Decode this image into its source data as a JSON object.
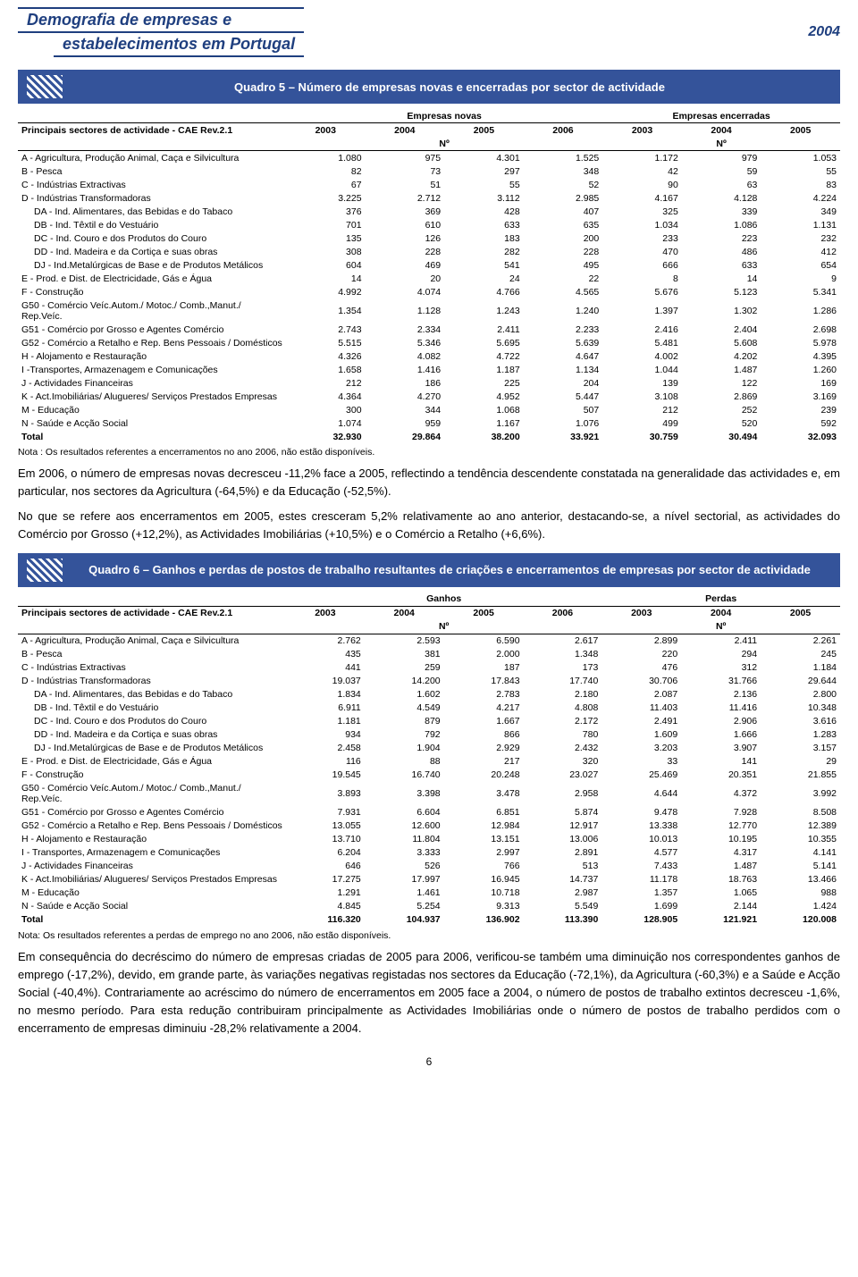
{
  "header": {
    "title_line1": "Demografia de empresas e",
    "title_line2": "estabelecimentos em Portugal",
    "year": "2004"
  },
  "quadro5": {
    "title": "Quadro 5 – Número de empresas novas e encerradas por sector de actividade",
    "col_label": "Principais sectores de actividade - CAE Rev.2.1",
    "group1": "Empresas novas",
    "group2": "Empresas encerradas",
    "years1": [
      "2003",
      "2004",
      "2005",
      "2006"
    ],
    "years2": [
      "2003",
      "2004",
      "2005"
    ],
    "unit": "Nº",
    "rows": [
      {
        "l": "A - Agricultura, Produção Animal, Caça e Silvicultura",
        "v": [
          "1.080",
          "975",
          "4.301",
          "1.525",
          "1.172",
          "979",
          "1.053"
        ]
      },
      {
        "l": "B - Pesca",
        "v": [
          "82",
          "73",
          "297",
          "348",
          "42",
          "59",
          "55"
        ]
      },
      {
        "l": "C - Indústrias Extractivas",
        "v": [
          "67",
          "51",
          "55",
          "52",
          "90",
          "63",
          "83"
        ]
      },
      {
        "l": "D - Indústrias Transformadoras",
        "v": [
          "3.225",
          "2.712",
          "3.112",
          "2.985",
          "4.167",
          "4.128",
          "4.224"
        ]
      },
      {
        "l": "DA - Ind. Alimentares, das Bebidas e do Tabaco",
        "v": [
          "376",
          "369",
          "428",
          "407",
          "325",
          "339",
          "349"
        ],
        "i": true
      },
      {
        "l": "DB - Ind. Têxtil e do Vestuário",
        "v": [
          "701",
          "610",
          "633",
          "635",
          "1.034",
          "1.086",
          "1.131"
        ],
        "i": true
      },
      {
        "l": "DC - Ind. Couro e dos Produtos do Couro",
        "v": [
          "135",
          "126",
          "183",
          "200",
          "233",
          "223",
          "232"
        ],
        "i": true
      },
      {
        "l": "DD - Ind. Madeira e da Cortiça e suas obras",
        "v": [
          "308",
          "228",
          "282",
          "228",
          "470",
          "486",
          "412"
        ],
        "i": true
      },
      {
        "l": "DJ - Ind.Metalúrgicas de Base e de Produtos Metálicos",
        "v": [
          "604",
          "469",
          "541",
          "495",
          "666",
          "633",
          "654"
        ],
        "i": true
      },
      {
        "l": "E - Prod. e Dist. de Electricidade, Gás e Água",
        "v": [
          "14",
          "20",
          "24",
          "22",
          "8",
          "14",
          "9"
        ]
      },
      {
        "l": "F - Construção",
        "v": [
          "4.992",
          "4.074",
          "4.766",
          "4.565",
          "5.676",
          "5.123",
          "5.341"
        ]
      },
      {
        "l": "G50 - Comércio Veíc.Autom./ Motoc./ Comb.,Manut./ Rep.Veíc.",
        "v": [
          "1.354",
          "1.128",
          "1.243",
          "1.240",
          "1.397",
          "1.302",
          "1.286"
        ]
      },
      {
        "l": "G51 - Comércio por Grosso e Agentes Comércio",
        "v": [
          "2.743",
          "2.334",
          "2.411",
          "2.233",
          "2.416",
          "2.404",
          "2.698"
        ]
      },
      {
        "l": "G52 - Comércio a Retalho e Rep. Bens Pessoais / Domésticos",
        "v": [
          "5.515",
          "5.346",
          "5.695",
          "5.639",
          "5.481",
          "5.608",
          "5.978"
        ]
      },
      {
        "l": "H - Alojamento e Restauração",
        "v": [
          "4.326",
          "4.082",
          "4.722",
          "4.647",
          "4.002",
          "4.202",
          "4.395"
        ]
      },
      {
        "l": "I -Transportes, Armazenagem e Comunicações",
        "v": [
          "1.658",
          "1.416",
          "1.187",
          "1.134",
          "1.044",
          "1.487",
          "1.260"
        ]
      },
      {
        "l": "J - Actividades Financeiras",
        "v": [
          "212",
          "186",
          "225",
          "204",
          "139",
          "122",
          "169"
        ]
      },
      {
        "l": "K - Act.Imobiliárias/ Alugueres/ Serviços Prestados Empresas",
        "v": [
          "4.364",
          "4.270",
          "4.952",
          "5.447",
          "3.108",
          "2.869",
          "3.169"
        ]
      },
      {
        "l": "M - Educação",
        "v": [
          "300",
          "344",
          "1.068",
          "507",
          "212",
          "252",
          "239"
        ]
      },
      {
        "l": "N - Saúde e Acção Social",
        "v": [
          "1.074",
          "959",
          "1.167",
          "1.076",
          "499",
          "520",
          "592"
        ]
      }
    ],
    "total": {
      "l": "Total",
      "v": [
        "32.930",
        "29.864",
        "38.200",
        "33.921",
        "30.759",
        "30.494",
        "32.093"
      ]
    },
    "note": "Nota : Os resultados referentes a encerramentos no ano 2006, não estão disponíveis."
  },
  "para1": "Em 2006, o número de empresas novas decresceu -11,2% face a 2005, reflectindo a tendência descendente constatada na generalidade das actividades e, em particular, nos sectores da Agricultura (-64,5%) e da Educação (-52,5%).",
  "para2": "No que se refere aos encerramentos em 2005, estes cresceram 5,2% relativamente ao ano anterior, destacando-se, a nível sectorial, as actividades do Comércio por Grosso (+12,2%), as Actividades Imobiliárias (+10,5%) e o Comércio a Retalho (+6,6%).",
  "quadro6": {
    "title": "Quadro 6 – Ganhos e perdas de postos de trabalho resultantes de criações e encerramentos de empresas por sector de actividade",
    "col_label": "Principais sectores de actividade - CAE Rev.2.1",
    "group1": "Ganhos",
    "group2": "Perdas",
    "years1": [
      "2003",
      "2004",
      "2005",
      "2006"
    ],
    "years2": [
      "2003",
      "2004",
      "2005"
    ],
    "unit": "Nº",
    "rows": [
      {
        "l": "A - Agricultura, Produção Animal, Caça e Silvicultura",
        "v": [
          "2.762",
          "2.593",
          "6.590",
          "2.617",
          "2.899",
          "2.411",
          "2.261"
        ]
      },
      {
        "l": "B - Pesca",
        "v": [
          "435",
          "381",
          "2.000",
          "1.348",
          "220",
          "294",
          "245"
        ]
      },
      {
        "l": "C - Indústrias Extractivas",
        "v": [
          "441",
          "259",
          "187",
          "173",
          "476",
          "312",
          "1.184"
        ]
      },
      {
        "l": "D - Indústrias Transformadoras",
        "v": [
          "19.037",
          "14.200",
          "17.843",
          "17.740",
          "30.706",
          "31.766",
          "29.644"
        ]
      },
      {
        "l": "DA - Ind. Alimentares, das Bebidas e do Tabaco",
        "v": [
          "1.834",
          "1.602",
          "2.783",
          "2.180",
          "2.087",
          "2.136",
          "2.800"
        ],
        "i": true
      },
      {
        "l": "DB - Ind. Têxtil e do Vestuário",
        "v": [
          "6.911",
          "4.549",
          "4.217",
          "4.808",
          "11.403",
          "11.416",
          "10.348"
        ],
        "i": true
      },
      {
        "l": "DC - Ind. Couro e dos Produtos do Couro",
        "v": [
          "1.181",
          "879",
          "1.667",
          "2.172",
          "2.491",
          "2.906",
          "3.616"
        ],
        "i": true
      },
      {
        "l": "DD - Ind. Madeira e da Cortiça e suas obras",
        "v": [
          "934",
          "792",
          "866",
          "780",
          "1.609",
          "1.666",
          "1.283"
        ],
        "i": true
      },
      {
        "l": "DJ - Ind.Metalúrgicas de Base e de Produtos Metálicos",
        "v": [
          "2.458",
          "1.904",
          "2.929",
          "2.432",
          "3.203",
          "3.907",
          "3.157"
        ],
        "i": true
      },
      {
        "l": "E - Prod. e Dist. de Electricidade, Gás e Água",
        "v": [
          "116",
          "88",
          "217",
          "320",
          "33",
          "141",
          "29"
        ]
      },
      {
        "l": "F - Construção",
        "v": [
          "19.545",
          "16.740",
          "20.248",
          "23.027",
          "25.469",
          "20.351",
          "21.855"
        ]
      },
      {
        "l": "G50 - Comércio Veíc.Autom./ Motoc./ Comb.,Manut./ Rep.Veíc.",
        "v": [
          "3.893",
          "3.398",
          "3.478",
          "2.958",
          "4.644",
          "4.372",
          "3.992"
        ]
      },
      {
        "l": "G51 - Comércio por Grosso e Agentes Comércio",
        "v": [
          "7.931",
          "6.604",
          "6.851",
          "5.874",
          "9.478",
          "7.928",
          "8.508"
        ]
      },
      {
        "l": "G52 - Comércio a Retalho e Rep. Bens Pessoais / Domésticos",
        "v": [
          "13.055",
          "12.600",
          "12.984",
          "12.917",
          "13.338",
          "12.770",
          "12.389"
        ]
      },
      {
        "l": "H - Alojamento e Restauração",
        "v": [
          "13.710",
          "11.804",
          "13.151",
          "13.006",
          "10.013",
          "10.195",
          "10.355"
        ]
      },
      {
        "l": "I - Transportes, Armazenagem e Comunicações",
        "v": [
          "6.204",
          "3.333",
          "2.997",
          "2.891",
          "4.577",
          "4.317",
          "4.141"
        ]
      },
      {
        "l": "J - Actividades Financeiras",
        "v": [
          "646",
          "526",
          "766",
          "513",
          "7.433",
          "1.487",
          "5.141"
        ]
      },
      {
        "l": "K - Act.Imobiliárias/ Alugueres/ Serviços Prestados Empresas",
        "v": [
          "17.275",
          "17.997",
          "16.945",
          "14.737",
          "11.178",
          "18.763",
          "13.466"
        ]
      },
      {
        "l": "M - Educação",
        "v": [
          "1.291",
          "1.461",
          "10.718",
          "2.987",
          "1.357",
          "1.065",
          "988"
        ]
      },
      {
        "l": "N - Saúde e Acção Social",
        "v": [
          "4.845",
          "5.254",
          "9.313",
          "5.549",
          "1.699",
          "2.144",
          "1.424"
        ]
      }
    ],
    "total": {
      "l": "Total",
      "v": [
        "116.320",
        "104.937",
        "136.902",
        "113.390",
        "128.905",
        "121.921",
        "120.008"
      ]
    },
    "note": "Nota: Os resultados referentes a perdas de emprego no ano 2006, não estão disponíveis."
  },
  "para3": "Em consequência do decréscimo do número de empresas criadas de 2005 para 2006, verificou-se também uma diminuição nos correspondentes ganhos de emprego (-17,2%), devido, em grande parte, às variações negativas registadas nos sectores da Educação (-72,1%), da Agricultura (-60,3%) e a Saúde e Acção Social (-40,4%). Contrariamente ao acréscimo do número de encerramentos em 2005 face a 2004, o número de postos de trabalho extintos decresceu -1,6%, no mesmo período. Para esta redução contribuiram principalmente as Actividades Imobiliárias onde o número de postos de trabalho perdidos com o encerramento de empresas diminuiu -28,2% relativamente a 2004.",
  "page_num": "6"
}
